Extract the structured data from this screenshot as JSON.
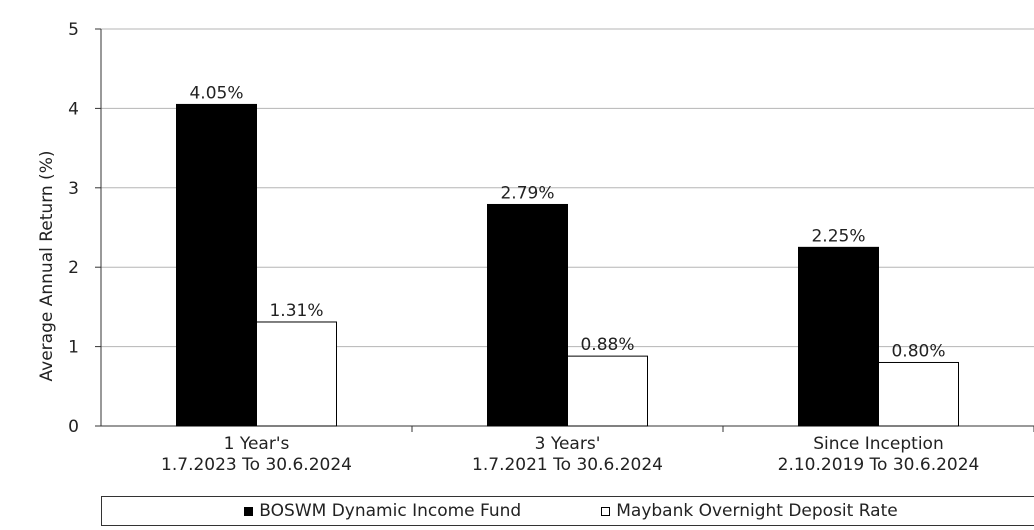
{
  "chart_data": {
    "type": "bar",
    "ylabel": "Average Annual Return (%)",
    "ylim": [
      0,
      5
    ],
    "yticks": [
      0,
      1,
      2,
      3,
      4,
      5
    ],
    "grid": true,
    "legend_position": "bottom",
    "categories": [
      [
        "1 Year's",
        "1.7.2023 To 30.6.2024"
      ],
      [
        "3 Years'",
        "1.7.2021 To 30.6.2024"
      ],
      [
        "Since Inception",
        "2.10.2019 To 30.6.2024"
      ]
    ],
    "series": [
      {
        "name": "BOSWM Dynamic Income Fund",
        "color": "#000000",
        "values": [
          4.05,
          2.79,
          2.25
        ],
        "labels": [
          "4.05%",
          "2.79%",
          "2.25%"
        ]
      },
      {
        "name": "Maybank Overnight Deposit Rate",
        "color": "#ffffff",
        "values": [
          1.31,
          0.88,
          0.8
        ],
        "labels": [
          "1.31%",
          "0.88%",
          "0.80%"
        ]
      }
    ]
  }
}
